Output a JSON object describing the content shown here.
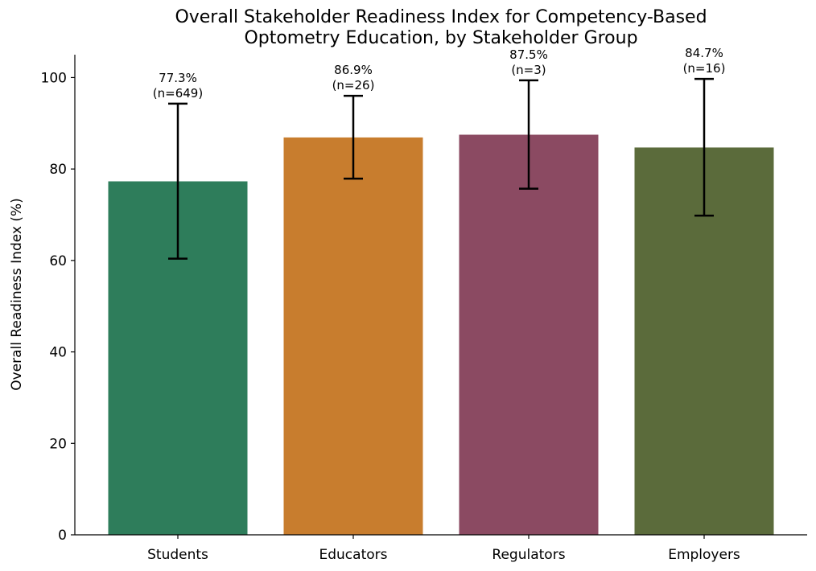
{
  "chart_data": {
    "type": "bar",
    "title_lines": [
      "Overall Stakeholder Readiness Index for Competency-Based",
      "Optometry Education, by Stakeholder Group"
    ],
    "xlabel": "",
    "ylabel": "Overall Readiness Index (%)",
    "ylim": [
      0,
      105
    ],
    "yticks": [
      0,
      20,
      40,
      60,
      80,
      100
    ],
    "grid": false,
    "categories": [
      "Students",
      "Educators",
      "Regulators",
      "Employers"
    ],
    "values": [
      77.3,
      86.9,
      87.5,
      84.7
    ],
    "error_low": [
      60.4,
      77.9,
      75.7,
      69.8
    ],
    "error_high": [
      94.3,
      96.0,
      99.4,
      99.7
    ],
    "colors": [
      "#2e7d5b",
      "#c87d2e",
      "#8b4a62",
      "#5b6b3b"
    ],
    "data_labels": [
      [
        "77.3%",
        "(n=649)"
      ],
      [
        "86.9%",
        "(n=26)"
      ],
      [
        "87.5%",
        "(n=3)"
      ],
      [
        "84.7%",
        "(n=16)"
      ]
    ]
  }
}
